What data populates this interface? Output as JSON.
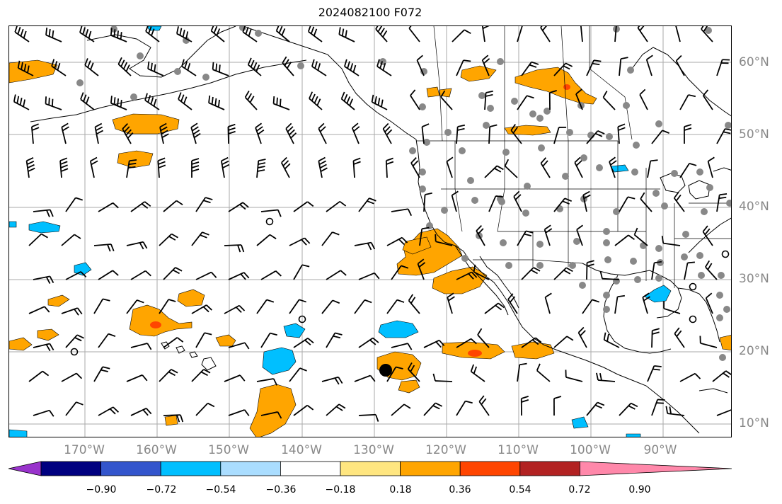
{
  "title": "2024082100 F072",
  "longitude_labels": [
    "170°W",
    "160°W",
    "150°W",
    "140°W",
    "130°W",
    "120°W",
    "110°W",
    "100°W",
    "90°W"
  ],
  "latitude_labels": [
    "60°N",
    "50°N",
    "40°N",
    "30°N",
    "20°N",
    "10°N"
  ],
  "colorbar": {
    "tick_labels": [
      "−0.90",
      "−0.72",
      "−0.54",
      "−0.36",
      "−0.18",
      "0.18",
      "0.36",
      "0.54",
      "0.72",
      "0.90"
    ],
    "colors": [
      "#9933cc",
      "#000080",
      "#3355cc",
      "#00bfff",
      "#aaddff",
      "#ffffff",
      "#ffe680",
      "#ffa500",
      "#ff4500",
      "#b22222",
      "#ff88aa"
    ]
  },
  "map_colors": {
    "positive": "#ffa500",
    "positive_core": "#ff4500",
    "negative": "#00bfff",
    "stations": "#888888",
    "grid": "#aaaaaa",
    "coast": "#000000"
  }
}
